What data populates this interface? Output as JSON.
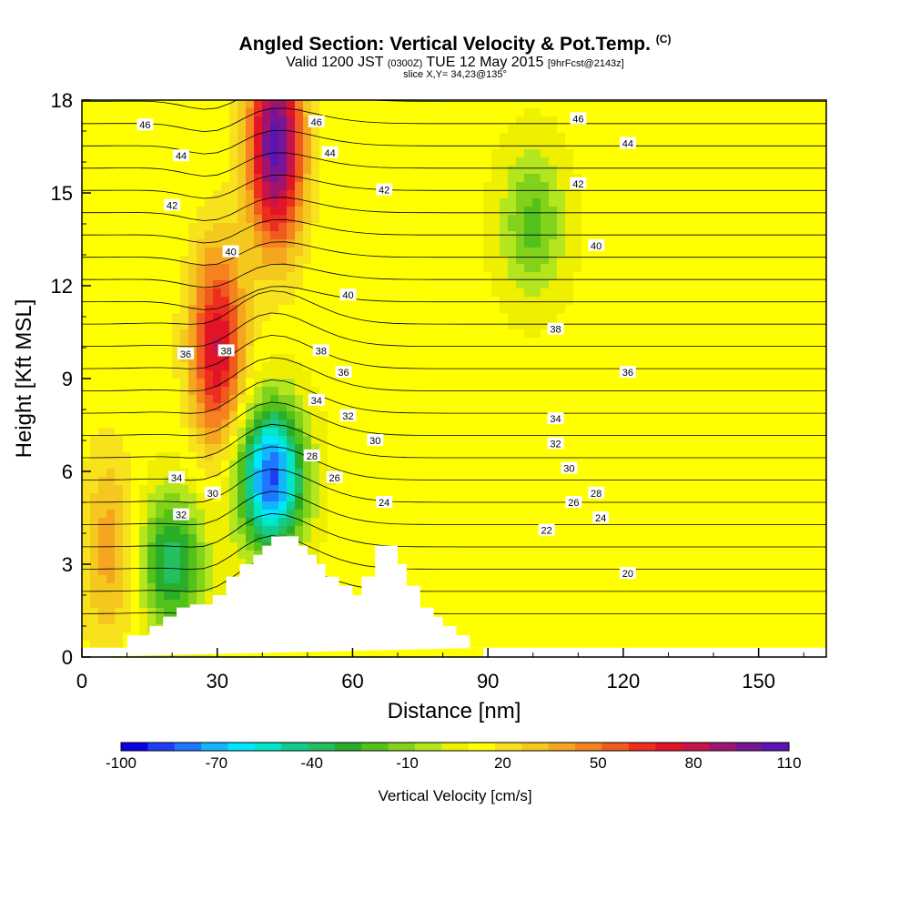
{
  "header": {
    "title": "Angled Section: Vertical Velocity & Pot.Temp.",
    "title_unit": "(C)",
    "valid_prefix": "Valid 1200 JST",
    "valid_z": "(0300Z)",
    "valid_date": "TUE 12 May 2015",
    "forecast": "[9hrFcst@2143z]",
    "slice": "slice X,Y= 34,23@135°"
  },
  "chart_data": {
    "type": "heatmap",
    "xlabel": "Distance [nm]",
    "ylabel": "Height [Kft MSL]",
    "xlim": [
      0,
      165
    ],
    "ylim": [
      0,
      18
    ],
    "x_ticks": [
      0,
      30,
      60,
      90,
      120,
      150
    ],
    "y_ticks": [
      0,
      3,
      6,
      9,
      12,
      15,
      18
    ],
    "colorbar": {
      "label": "Vertical Velocity [cm/s]",
      "tick_labels": [
        -100,
        -70,
        -40,
        -10,
        20,
        50,
        80,
        110
      ],
      "colors": [
        "#0a00e6",
        "#1f3cf5",
        "#1e78ff",
        "#14b4ff",
        "#00e6ff",
        "#00e6c8",
        "#10cc90",
        "#22c060",
        "#2aae2a",
        "#52c21a",
        "#82d21c",
        "#b4e61e",
        "#eef000",
        "#ffff00",
        "#f8e21c",
        "#f5c81e",
        "#f5a51e",
        "#f5821e",
        "#f05a1e",
        "#ee2d1e",
        "#e11428",
        "#c8144a",
        "#a0146e",
        "#781496",
        "#5a14b4"
      ]
    },
    "velocity_field_features": [
      {
        "kind": "updraft",
        "x": 30,
        "y": 10,
        "value": 80
      },
      {
        "kind": "updraft",
        "x": 43,
        "y": 16.5,
        "value": 110
      },
      {
        "kind": "downdraft",
        "x": 42,
        "y": 5.8,
        "value": -90
      },
      {
        "kind": "downdraft",
        "x": 20,
        "y": 3,
        "value": -40
      },
      {
        "kind": "downdraft",
        "x": 100,
        "y": 14,
        "value": -20
      },
      {
        "kind": "updraft",
        "x": 6,
        "y": 3.5,
        "value": 40
      }
    ],
    "contour_labels": [
      {
        "text": "46",
        "x": 14,
        "y": 17.2
      },
      {
        "text": "44",
        "x": 22,
        "y": 16.2
      },
      {
        "text": "42",
        "x": 20,
        "y": 14.6
      },
      {
        "text": "40",
        "x": 33,
        "y": 13.1
      },
      {
        "text": "38",
        "x": 32,
        "y": 9.9
      },
      {
        "text": "36",
        "x": 23,
        "y": 9.8
      },
      {
        "text": "34",
        "x": 21,
        "y": 5.8
      },
      {
        "text": "32",
        "x": 22,
        "y": 4.6
      },
      {
        "text": "30",
        "x": 29,
        "y": 5.3
      },
      {
        "text": "46",
        "x": 52,
        "y": 17.3
      },
      {
        "text": "44",
        "x": 55,
        "y": 16.3
      },
      {
        "text": "42",
        "x": 67,
        "y": 15.1
      },
      {
        "text": "40",
        "x": 59,
        "y": 11.7
      },
      {
        "text": "38",
        "x": 53,
        "y": 9.9
      },
      {
        "text": "36",
        "x": 58,
        "y": 9.2
      },
      {
        "text": "34",
        "x": 52,
        "y": 8.3
      },
      {
        "text": "32",
        "x": 59,
        "y": 7.8
      },
      {
        "text": "30",
        "x": 65,
        "y": 7.0
      },
      {
        "text": "28",
        "x": 51,
        "y": 6.5
      },
      {
        "text": "26",
        "x": 56,
        "y": 5.8
      },
      {
        "text": "24",
        "x": 67,
        "y": 5.0
      },
      {
        "text": "46",
        "x": 110,
        "y": 17.4
      },
      {
        "text": "44",
        "x": 121,
        "y": 16.6
      },
      {
        "text": "42",
        "x": 110,
        "y": 15.3
      },
      {
        "text": "40",
        "x": 114,
        "y": 13.3
      },
      {
        "text": "38",
        "x": 105,
        "y": 10.6
      },
      {
        "text": "36",
        "x": 121,
        "y": 9.2
      },
      {
        "text": "34",
        "x": 105,
        "y": 7.7
      },
      {
        "text": "32",
        "x": 105,
        "y": 6.9
      },
      {
        "text": "30",
        "x": 108,
        "y": 6.1
      },
      {
        "text": "28",
        "x": 114,
        "y": 5.3
      },
      {
        "text": "26",
        "x": 109,
        "y": 5.0
      },
      {
        "text": "24",
        "x": 115,
        "y": 4.5
      },
      {
        "text": "22",
        "x": 103,
        "y": 4.1
      },
      {
        "text": "20",
        "x": 121,
        "y": 2.7
      }
    ]
  }
}
